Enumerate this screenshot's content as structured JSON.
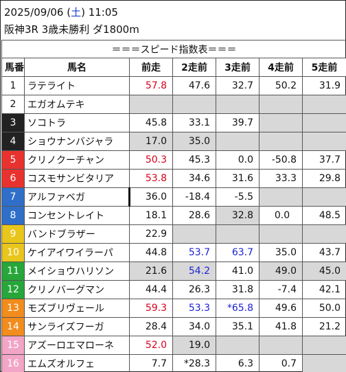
{
  "header": {
    "date_prefix": "2025/09/06 (",
    "day_of_week": "土",
    "date_suffix": ") 11:05",
    "race": "阪神3R 3歳未勝利 ダ1800m"
  },
  "table": {
    "title": "＝＝＝スピード指数表＝＝＝",
    "columns": [
      "馬番",
      "馬名",
      "前走",
      "2走前",
      "3走前",
      "4走前",
      "5走前"
    ],
    "colors": {
      "frame_1": "#ffffff",
      "frame_2": "#ffffff",
      "frame_3": "#222222",
      "frame_4": "#222222",
      "frame_5": "#e8322e",
      "frame_6": "#e8322e",
      "frame_7": "#2f6fc9",
      "frame_8": "#2f6fc9",
      "frame_9": "#e8c61c",
      "frame_10": "#e8c61c",
      "frame_11": "#27a63a",
      "frame_12": "#27a63a",
      "frame_13": "#f28c1c",
      "frame_14": "#f28c1c",
      "frame_15": "#f2a5c6",
      "frame_16": "#f2a5c6",
      "highlight_red": "#d8001c",
      "highlight_blue": "#1a22d6",
      "grey_cell": "#d8d8d8"
    },
    "rows": [
      {
        "no": "1",
        "name": "ラテライト",
        "v": [
          "57.8",
          "47.6",
          "32.7",
          "50.2",
          "31.9"
        ]
      },
      {
        "no": "2",
        "name": "エガオムテキ",
        "v": [
          "",
          "",
          "",
          "",
          ""
        ]
      },
      {
        "no": "3",
        "name": "ソコトラ",
        "v": [
          "45.8",
          "33.1",
          "39.7",
          "",
          ""
        ]
      },
      {
        "no": "4",
        "name": "ショウナンバジャラ",
        "v": [
          "17.0",
          "35.0",
          "",
          "",
          ""
        ]
      },
      {
        "no": "5",
        "name": "クリノクーチャン",
        "v": [
          "50.3",
          "45.3",
          "0.0",
          "-50.8",
          "37.7"
        ]
      },
      {
        "no": "6",
        "name": "コスモサンビタリア",
        "v": [
          "53.8",
          "34.6",
          "31.6",
          "33.3",
          "29.8"
        ]
      },
      {
        "no": "7",
        "name": "アルファベガ",
        "v": [
          "36.0",
          "-18.4",
          "-5.5",
          "",
          ""
        ]
      },
      {
        "no": "8",
        "name": "コンセントレイト",
        "v": [
          "18.1",
          "28.6",
          "32.8",
          "0.0",
          "48.5"
        ]
      },
      {
        "no": "9",
        "name": "バンドブラザー",
        "v": [
          "22.9",
          "",
          "",
          "",
          ""
        ]
      },
      {
        "no": "10",
        "name": "ケイアイワイラーパ",
        "v": [
          "44.8",
          "53.7",
          "63.7",
          "35.0",
          "43.7"
        ]
      },
      {
        "no": "11",
        "name": "メイショウハリソン",
        "v": [
          "21.6",
          "54.2",
          "41.0",
          "49.0",
          "45.0"
        ]
      },
      {
        "no": "12",
        "name": "クリノバーグマン",
        "v": [
          "44.4",
          "26.3",
          "31.8",
          "-7.4",
          "42.1"
        ]
      },
      {
        "no": "13",
        "name": "モズブリヴェール",
        "v": [
          "59.3",
          "53.3",
          "*65.8",
          "49.6",
          "50.0"
        ]
      },
      {
        "no": "14",
        "name": "サンライズフーガ",
        "v": [
          "28.4",
          "34.0",
          "35.1",
          "41.8",
          "21.2"
        ]
      },
      {
        "no": "15",
        "name": "アズーロエマローネ",
        "v": [
          "52.0",
          "19.0",
          "",
          "",
          ""
        ]
      },
      {
        "no": "16",
        "name": "エムズオルフェ",
        "v": [
          "7.7",
          "*28.3",
          "6.3",
          "0.7",
          ""
        ]
      }
    ]
  }
}
